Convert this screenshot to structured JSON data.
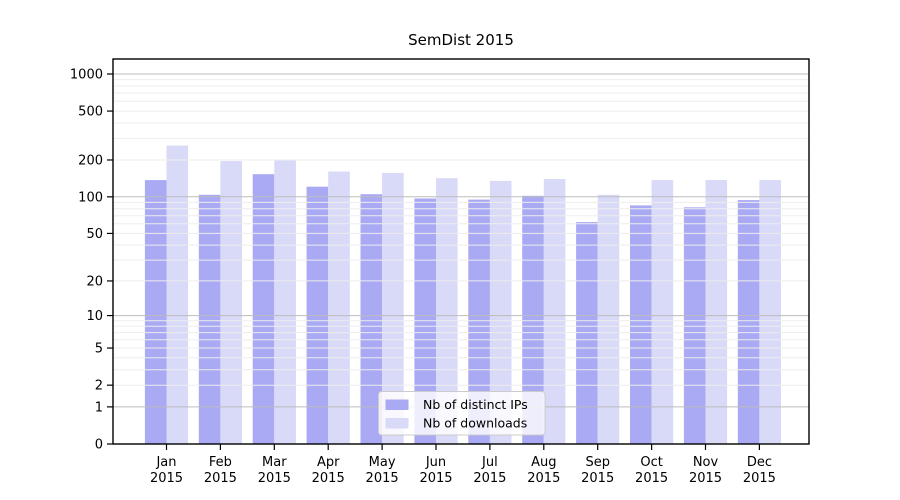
{
  "chart_data": {
    "type": "bar",
    "title": "SemDist 2015",
    "categories": [
      "Jan",
      "Feb",
      "Mar",
      "Apr",
      "May",
      "Jun",
      "Jul",
      "Aug",
      "Sep",
      "Oct",
      "Nov",
      "Dec"
    ],
    "year_label": "2015",
    "series": [
      {
        "name": "Nb of distinct IPs",
        "color": "#a9a9f4",
        "values": [
          137,
          104,
          153,
          121,
          105,
          97,
          95,
          102,
          62,
          85,
          82,
          94
        ]
      },
      {
        "name": "Nb of downloads",
        "color": "#d9d9f8",
        "values": [
          262,
          196,
          199,
          161,
          157,
          142,
          135,
          140,
          104,
          137,
          137,
          137
        ]
      }
    ],
    "yscale": "log1p",
    "yticks": [
      0,
      1,
      2,
      5,
      10,
      20,
      50,
      100,
      200,
      500,
      1000
    ],
    "ylim": [
      0,
      1325
    ],
    "grid": {
      "on": true,
      "major_color": "#bdbdbd",
      "minor_color": "#ededed",
      "axisbelow": false
    },
    "legend": {
      "position": "lower-center",
      "border_color": "#cccccc",
      "background": "rgba(255,255,255,0.8)"
    }
  }
}
